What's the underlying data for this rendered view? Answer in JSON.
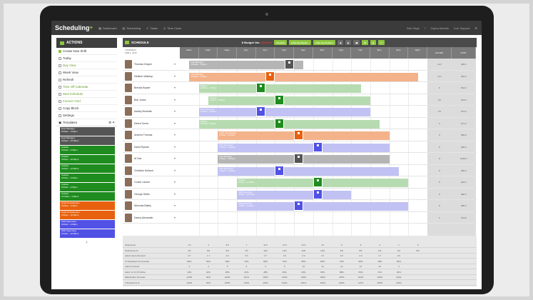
{
  "app": {
    "logo": "Scheduling",
    "logo_plus": "+",
    "logo_accent": "#8dc63f"
  },
  "nav": [
    {
      "label": "Dashboard",
      "icon": "dashboard-icon"
    },
    {
      "label": "Scheduling",
      "icon": "calendar-icon"
    },
    {
      "label": "Tasks",
      "icon": "tasks-icon"
    },
    {
      "label": "Time Clock",
      "icon": "clock-icon"
    }
  ],
  "top_right": {
    "user": "Bob Virgil",
    "org": "Opera Admins",
    "support": "Live Support"
  },
  "sidebar": {
    "header": "ACTIONS",
    "actions": [
      {
        "label": "Create New Shift",
        "icon": "plus-icon"
      },
      {
        "label": "Today",
        "icon": "today-icon"
      },
      {
        "label": "Day View",
        "icon": "day-view-icon"
      },
      {
        "label": "Week View",
        "icon": "week-view-icon"
      },
      {
        "label": "Refresh",
        "icon": "refresh-icon"
      },
      {
        "label": "Time Off Calendar",
        "icon": "time-off-icon"
      },
      {
        "label": "Mod Schedule",
        "icon": "mod-schedule-icon"
      },
      {
        "label": "Forever Grid",
        "icon": "grid-icon"
      },
      {
        "label": "Copy Block",
        "icon": "copy-icon"
      },
      {
        "label": "Settings",
        "icon": "settings-icon"
      }
    ],
    "templates_label": "Templates",
    "templates": [
      {
        "title": "Host Manager",
        "time": "6:00am - 2:00pm",
        "color": "#555555"
      },
      {
        "title": "Host Manager",
        "time": "2:00pm - 10:00pm",
        "color": "#555555"
      },
      {
        "title": "Cashier",
        "time": "6:00am - 2:00pm",
        "color": "#1e8c1e"
      },
      {
        "title": "Cashier",
        "time": "2:00pm - 10:00pm",
        "color": "#1e8c1e"
      },
      {
        "title": "Cashier",
        "time": "4:00pm - 12:00am",
        "color": "#1e8c1e"
      },
      {
        "title": "Cashier",
        "time": "6:00pm - 2:00am",
        "color": "#1e8c1e"
      },
      {
        "title": "Cashier",
        "time": "8:00am - 4:00pm",
        "color": "#1e8c1e"
      },
      {
        "title": "Cashier",
        "time": "10:00am - 6:00pm",
        "color": "#1e8c1e"
      },
      {
        "title": "Head Housekeeper",
        "time": "6:00am - 2:00pm",
        "color": "#e8610e"
      },
      {
        "title": "Head Housekeeper",
        "time": "2:00pm - 10:00pm",
        "color": "#e8610e"
      },
      {
        "title": "Shift Supervisor",
        "time": "6:00am - 2:00pm",
        "color": "#5151e5"
      },
      {
        "title": "Shift Supervisor",
        "time": "2:00pm - 10:00pm",
        "color": "#5151e5"
      }
    ]
  },
  "schedule": {
    "title": "SCHEDULE",
    "budget_label": "$ Budget Var:",
    "budget_value": "-$340.00",
    "controls": [
      "Position",
      "Filter By Depart...",
      "Filter By Position"
    ],
    "date_line1": "THURSDAY",
    "date_line2": "FEB 4, 2016",
    "hours": [
      "10am",
      "11am",
      "12pm",
      "1pm",
      "2pm",
      "3pm",
      "4pm",
      "5pm",
      "6pm",
      "7pm",
      "8pm",
      "9pm",
      "10pm"
    ],
    "summary_headers": [
      "HOURS",
      "COST"
    ]
  },
  "employees": [
    {
      "name": "Thomas Chapin",
      "shift_title": "Host Manager",
      "shift_time": "10:00am - 5:00pm",
      "style": "gray",
      "start": 0.5,
      "end": 6.5,
      "chip": 5.5,
      "hours": "11.0",
      "cost": "$85.5"
    },
    {
      "name": "Heather Waldrup",
      "shift_title": "Host Manager",
      "shift_time": "10:00am - 4:00pm",
      "style": "orange",
      "start": 0.5,
      "end": 12.5,
      "chip": 4.5,
      "hours": "11.0",
      "cost": "$81.5"
    },
    {
      "name": "Brenda Bryder",
      "shift_title": "Cashier",
      "shift_time": "12:00pm - 6:00pm",
      "style": "green",
      "start": 1.0,
      "end": 9.5,
      "chip": 4.0,
      "hours": "8",
      "cost": "$64.0"
    },
    {
      "name": "Bob Jones",
      "shift_title": "Cashier",
      "shift_time": "2:00pm - 9:00pm",
      "style": "green",
      "start": 1.5,
      "end": 10.0,
      "chip": 5.0,
      "hours": "8.5",
      "cost": "$78.0"
    },
    {
      "name": "Ashley Burnette",
      "shift_title": "Shift Supervisor",
      "shift_time": "12:00pm - 8:00pm",
      "style": "purple",
      "start": 1.0,
      "end": 10.0,
      "chip": 4.0,
      "hours": "8.5",
      "cost": "$75.0"
    },
    {
      "name": "Debra Torres",
      "shift_title": "Cashier",
      "shift_time": "11:00am - 8:00pm",
      "style": "green",
      "start": 1.0,
      "end": 10.5,
      "chip": 5.0,
      "hours": "9",
      "cost": "$71.0"
    },
    {
      "name": "Andrew Thomas",
      "shift_title": "Head Housekeeper",
      "shift_time": "2:00pm - 11:00pm",
      "style": "orange",
      "start": 2.0,
      "end": 11.0,
      "chip": 6.0,
      "hours": "8",
      "cost": "$80.0"
    },
    {
      "name": "David Ryman",
      "shift_title": "Shift Supervisor",
      "shift_time": "2:00pm - 10:00pm",
      "style": "purple",
      "start": 2.0,
      "end": 11.0,
      "chip": 7.0,
      "hours": "8",
      "cost": "$80.0"
    },
    {
      "name": "Al Dan",
      "shift_title": "Host Manager",
      "shift_time": "2:00pm - 10:00pm",
      "style": "gray",
      "start": 2.0,
      "end": 11.0,
      "chip": 6.0,
      "hours": "8",
      "cost": "$180.0"
    },
    {
      "name": "Christian Holland",
      "shift_title": "Shift Supervisor",
      "shift_time": "2:00pm - 11:00pm",
      "style": "purple",
      "start": 2.0,
      "end": 11.5,
      "chip": 5.0,
      "hours": "8",
      "cost": "$80.0"
    },
    {
      "name": "Cooke Lauren",
      "shift_title": "Cashier",
      "shift_time": "4:00pm - 12:00am",
      "style": "green",
      "start": 3.0,
      "end": 12.0,
      "chip": 7.0,
      "hours": "8",
      "cost": "$64.0"
    },
    {
      "name": "George Gibbs",
      "shift_title": "Shift Supervisor",
      "shift_time": "4:00pm - 12:00am",
      "style": "purple",
      "start": 3.0,
      "end": 9.0,
      "chip": 7.0,
      "hours": "8",
      "cost": "$80.0"
    },
    {
      "name": "Nicholas Bailey",
      "shift_title": "Shift Supervisor",
      "shift_time": "2:00pm - 11:00pm",
      "style": "purple",
      "start": 3.0,
      "end": 12.0,
      "chip": 6.0,
      "hours": "8",
      "cost": "$80.0"
    },
    {
      "name": "Danny Alexander",
      "shift_title": "",
      "shift_time": "",
      "style": "none",
      "start": 0,
      "end": 0,
      "chip": -1,
      "hours": "0",
      "cost": "$0.00"
    }
  ],
  "totals": {
    "hours": "875.5",
    "cost": "$5,080.00"
  },
  "stats": [
    {
      "label": "Total Hours",
      "values": [
        "1.5",
        "4",
        "5.5",
        "7",
        "11.5",
        "11.5",
        "12.5",
        "13",
        "9",
        "5",
        "2",
        "1",
        "0"
      ]
    },
    {
      "label": "Total Hours %",
      "values": [
        "1%",
        "4%",
        "5%",
        "7%",
        "11%",
        "11%",
        "12%",
        "13%",
        "9%",
        "5%",
        "2%",
        "1%",
        "0%"
      ]
    },
    {
      "label": "Labor Hours Demand",
      "values": [
        "3.7",
        "1.7",
        "2.0",
        "5.0",
        "3.7",
        "3.0",
        "2.0",
        "3.7",
        "3.0",
        "2.0",
        "1.7",
        "3.0",
        ""
      ]
    },
    {
      "label": "% Scheduled To Forecast",
      "values": [
        "85%",
        "63%",
        "63%",
        "70%",
        "80%",
        "70%",
        "85%",
        "80%",
        "72%",
        "60%",
        "78%",
        "84%",
        ""
      ]
    },
    {
      "label": "Labor Forecast",
      "values": [
        "3",
        "4",
        "5",
        "6",
        "3",
        "5",
        "10",
        "12",
        "14",
        "13",
        "10",
        "4",
        ""
      ]
    },
    {
      "label": "Labor Vs % Of Online",
      "values": [
        "44%",
        "41%",
        "45%",
        "41%",
        "48%",
        "49%",
        "43%",
        "60%",
        "58%",
        "54%",
        "71%",
        "29%",
        ""
      ]
    },
    {
      "label": "Sales/Labor Forecast",
      "values": [
        "120%",
        "90%",
        "103%",
        "114%",
        "136%",
        "123%",
        "130%",
        "135%",
        "115%",
        "164%",
        "125%",
        "114%",
        ""
      ]
    },
    {
      "label": "Transactions %",
      "values": [
        "120%",
        "91%",
        "100%",
        "113%",
        "110%",
        "113%",
        "121%",
        "140%",
        "126%",
        "117%",
        "160%",
        "143%",
        ""
      ]
    }
  ]
}
